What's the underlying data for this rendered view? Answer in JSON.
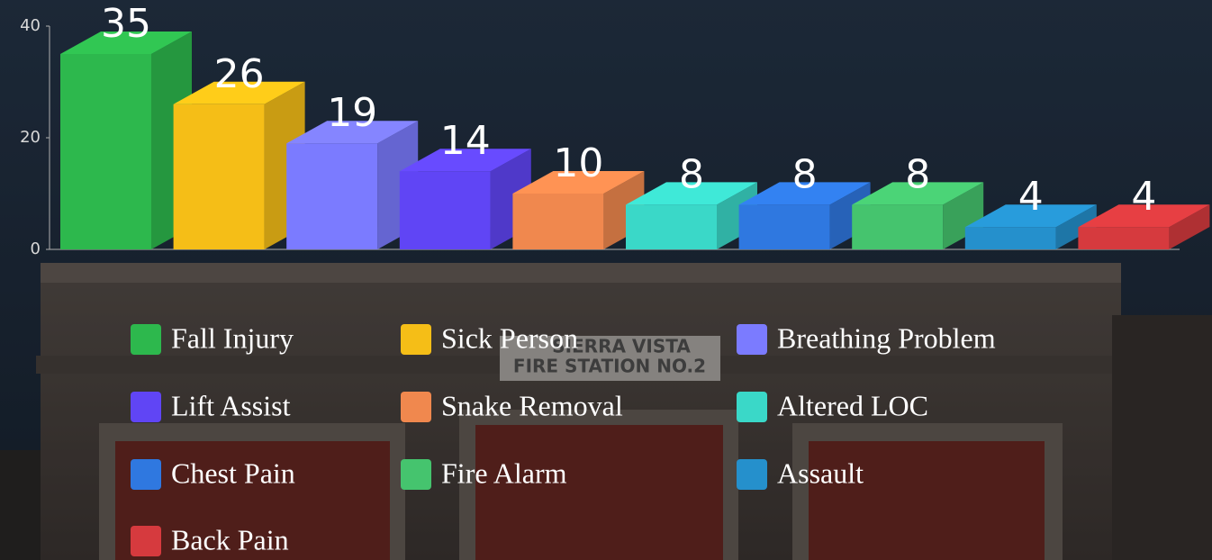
{
  "chart_data": {
    "type": "bar3d",
    "categories": [
      "Fall Injury",
      "Sick Person",
      "Breathing Problem",
      "Lift Assist",
      "Snake Removal",
      "Altered LOC",
      "Chest Pain",
      "Fire Alarm",
      "Assault",
      "Back Pain"
    ],
    "values": [
      35,
      26,
      19,
      14,
      10,
      8,
      8,
      8,
      4,
      4
    ],
    "colors": [
      "#2db84d",
      "#f5be17",
      "#7b7bff",
      "#6045f5",
      "#f0884e",
      "#3ad8c8",
      "#2f78e0",
      "#45c46e",
      "#2590cc",
      "#d63a3e"
    ],
    "ylim": [
      0,
      40
    ],
    "yticks": [
      0,
      20,
      40
    ],
    "grid": false,
    "legend": "bottom"
  },
  "background_text": [
    "SIERRA VISTA",
    "FIRE STATION NO.2"
  ]
}
